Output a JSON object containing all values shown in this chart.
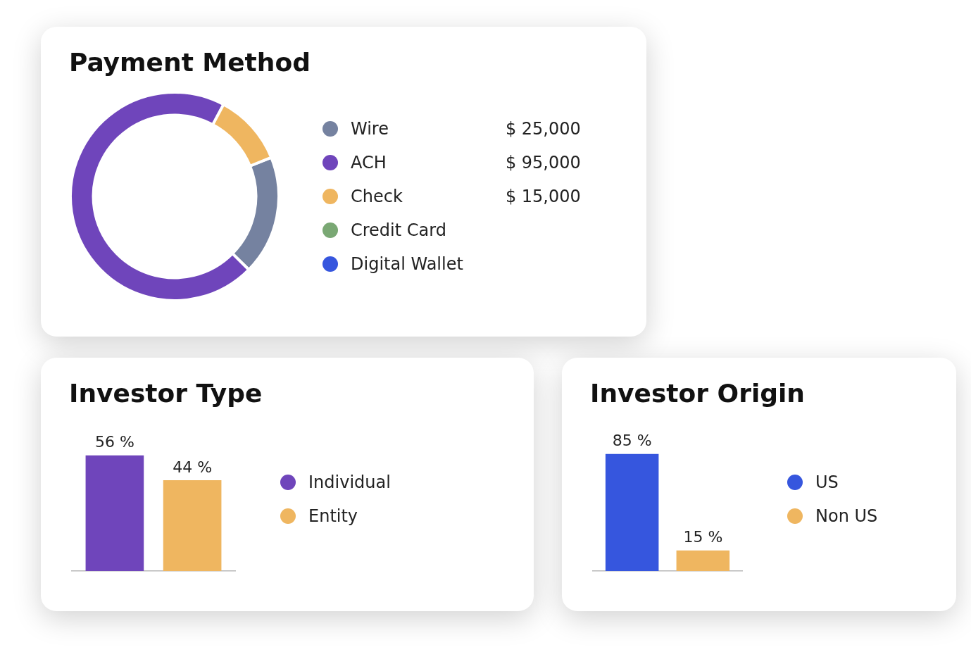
{
  "chart_data": [
    {
      "type": "donut",
      "title": "Payment Method",
      "categories": [
        "Wire",
        "ACH",
        "Check",
        "Credit Card",
        "Digital Wallet"
      ],
      "values": [
        25000,
        95000,
        15000,
        null,
        null
      ],
      "colors": [
        "#7582a0",
        "#6f45bb",
        "#efb660",
        "#7aa874",
        "#3656de"
      ],
      "value_labels": [
        "$ 25,000",
        "$ 95,000",
        "$ 15,000",
        null,
        null
      ],
      "legend": "right"
    },
    {
      "type": "bar",
      "title": "Investor Origin",
      "categories": [
        null
      ],
      "series": [
        {
          "name": "US",
          "color": "#3656de",
          "values": [
            85
          ],
          "value_labels": [
            "85 %"
          ]
        },
        {
          "name": "Non US",
          "color": "#efb660",
          "values": [
            15
          ],
          "value_labels": [
            "15 %"
          ]
        }
      ],
      "legend": "right",
      "tick_labels": false
    },
    {
      "type": "bar",
      "title": "Investor Type",
      "categories": [
        null
      ],
      "series": [
        {
          "name": "Individual",
          "color": "#6f45bb",
          "values": [
            56
          ],
          "value_labels": [
            "56 %"
          ]
        },
        {
          "name": "Entity",
          "color": "#efb660",
          "values": [
            44
          ],
          "value_labels": [
            "44 %"
          ]
        }
      ],
      "legend": "right",
      "tick_labels": false
    }
  ]
}
